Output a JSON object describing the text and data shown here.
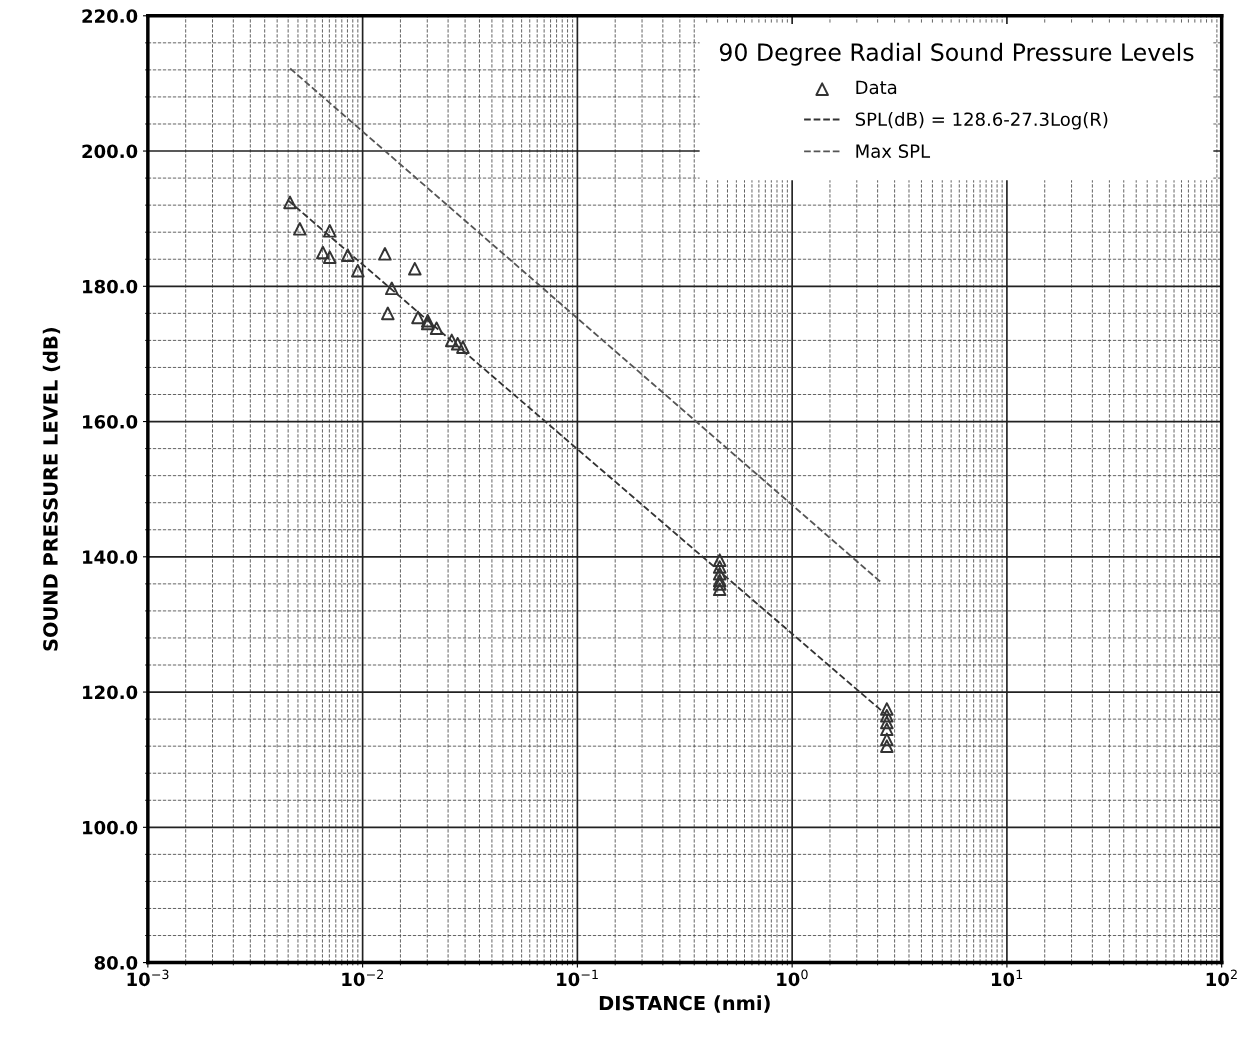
{
  "chart_data": {
    "type": "scatter",
    "xlabel": "DISTANCE (nmi)",
    "ylabel": "SOUND PRESSURE LEVEL (dB)",
    "legend_title": "90 Degree Radial Sound Pressure Levels",
    "legend": "top right",
    "log": "x",
    "grid": true,
    "xlim": [
      0.001,
      100
    ],
    "xticks": [
      {
        "value": 0.001,
        "label": "10$^{−3}$"
      },
      {
        "value": 0.01,
        "label": "10$^{−2}$"
      },
      {
        "value": 0.1,
        "label": "10$^{−1}$"
      },
      {
        "value": 1,
        "label": "10$^{0}$"
      },
      {
        "value": 10,
        "label": "10$^{1}$"
      },
      {
        "value": 100,
        "label": "10$^{2}$"
      }
    ],
    "ylim": [
      80,
      220
    ],
    "yticks": [
      {
        "value": 80,
        "label": "80.0"
      },
      {
        "value": 100,
        "label": "100.0"
      },
      {
        "value": 120,
        "label": "120.0"
      },
      {
        "value": 140,
        "label": "140.0"
      },
      {
        "value": 160,
        "label": "160.0"
      },
      {
        "value": 180,
        "label": "180.0"
      },
      {
        "value": 200,
        "label": "200.0"
      },
      {
        "value": 220,
        "label": "220.0"
      }
    ],
    "series": [
      {
        "name": "Data",
        "marker": "triangle",
        "color": "#333333",
        "x": [
          0.00459,
          0.0051,
          0.00703,
          0.00653,
          0.00703,
          0.00853,
          0.0095,
          0.0127,
          0.01367,
          0.0131,
          0.0175,
          0.0181,
          0.0201,
          0.0201,
          0.0221,
          0.026,
          0.0277,
          0.0293,
          0.46,
          0.46,
          0.46,
          0.46,
          0.46,
          0.46,
          2.76,
          2.76,
          2.76,
          2.76,
          2.76,
          2.76
        ],
        "values": [
          192.4,
          188.5,
          188.2,
          185.0,
          184.3,
          184.6,
          182.3,
          184.8,
          179.7,
          176.0,
          182.6,
          175.4,
          174.9,
          174.5,
          173.8,
          172.0,
          171.5,
          171.0,
          139.5,
          138.5,
          137.5,
          136.5,
          136.0,
          135.2,
          117.5,
          116.5,
          115.5,
          114.5,
          113.0,
          112.0
        ]
      },
      {
        "name": "SPL(dB) = 128.6-27.3Log(R)",
        "type": "line",
        "line_style": "dashed",
        "color": "#333333",
        "x": [
          0.0045,
          2.8
        ],
        "values": [
          192.7,
          116.4
        ]
      },
      {
        "name": "Max SPL",
        "type": "line",
        "line_style": "dashed",
        "color": "#555555",
        "x": [
          0.0046,
          2.6
        ],
        "values": [
          212.2,
          136.2
        ]
      }
    ]
  }
}
